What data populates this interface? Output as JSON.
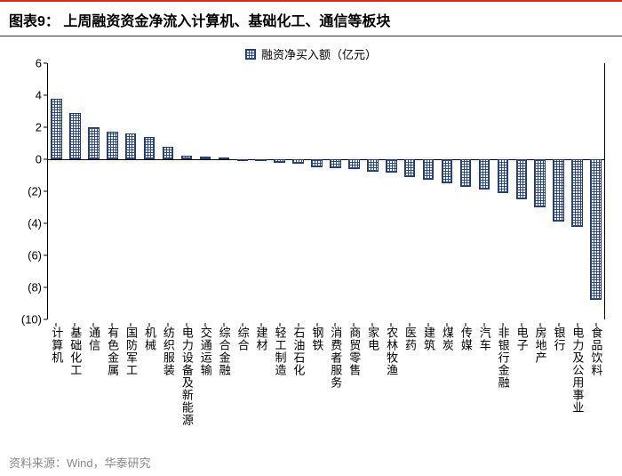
{
  "title": "图表9：  上周融资资金净流入计算机、基础化工、通信等板块",
  "source": "资料来源：Wind，华泰研究",
  "chart": {
    "type": "bar",
    "legend_label": "融资净买入额（亿元）",
    "ymin": -10,
    "ymax": 6,
    "yticks": [
      6,
      4,
      2,
      0,
      -2,
      -4,
      -6,
      -8,
      -10
    ],
    "ytick_labels": [
      "6",
      "4",
      "2",
      "0",
      "(2)",
      "(4)",
      "(6)",
      "(8)",
      "(10)"
    ],
    "bar_color": "#2a4a8a",
    "bar_pattern": "grid",
    "background_color": "#ffffff",
    "axis_color": "#000000",
    "title_fontsize": 16,
    "label_fontsize": 13,
    "bar_width_ratio": 0.6,
    "categories": [
      "计算机",
      "基础化工",
      "通信",
      "有色金属",
      "国防军工",
      "机械",
      "纺织服装",
      "电力设备及新能源",
      "交通运输",
      "综合金融",
      "综合",
      "建材",
      "轻工制造",
      "石油石化",
      "钢铁",
      "消费者服务",
      "商贸零售",
      "家电",
      "农林牧渔",
      "医药",
      "建筑",
      "煤炭",
      "传媒",
      "汽车",
      "非银行金融",
      "电子",
      "房地产",
      "银行",
      "电力及公用事业",
      "食品饮料"
    ],
    "values": [
      3.8,
      2.9,
      2.0,
      1.7,
      1.6,
      1.4,
      0.8,
      0.25,
      0.15,
      0.1,
      -0.05,
      -0.1,
      -0.2,
      -0.3,
      -0.5,
      -0.55,
      -0.6,
      -0.8,
      -0.85,
      -1.1,
      -1.3,
      -1.5,
      -1.7,
      -1.9,
      -2.1,
      -2.5,
      -3.0,
      -3.9,
      -4.2,
      -8.8
    ]
  }
}
